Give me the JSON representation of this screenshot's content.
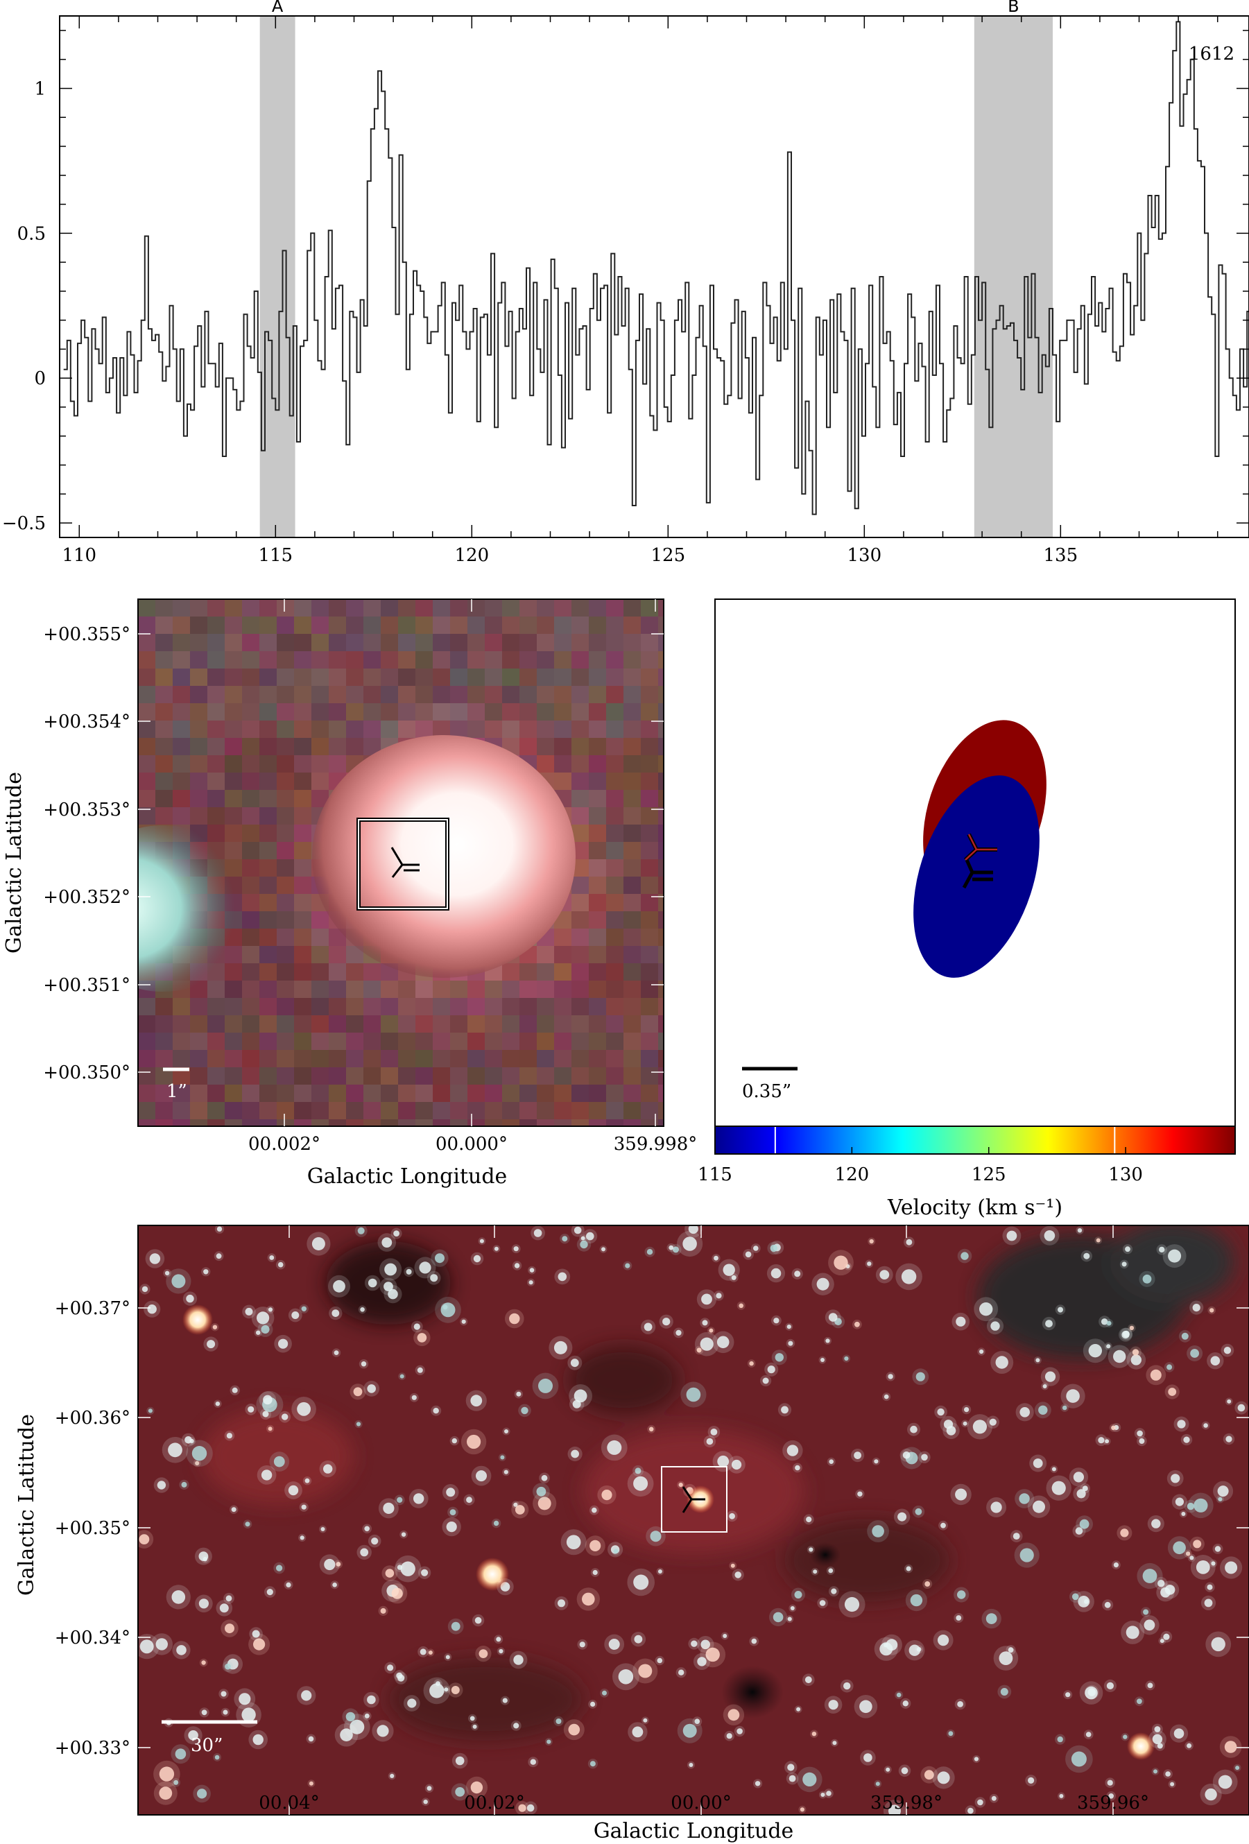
{
  "chart_data": [
    {
      "type": "line",
      "panel": "spectrum",
      "annotation": "1612",
      "xlim": [
        109.5,
        139.8
      ],
      "ylim": [
        -0.55,
        1.25
      ],
      "xticks": [
        110,
        115,
        120,
        125,
        130,
        135
      ],
      "yticks": [
        1,
        0.5,
        0,
        -0.5
      ],
      "ytick_labels": [
        "1",
        "0.5",
        "0",
        "−0.5"
      ],
      "shaded_regions": [
        {
          "label": "A",
          "x0": 114.6,
          "x1": 115.5
        },
        {
          "label": "B",
          "x0": 132.8,
          "x1": 134.8
        }
      ],
      "x_start": 109.6,
      "x_step": 0.09,
      "values": [
        0.03,
        0.13,
        -0.08,
        -0.13,
        0.12,
        0.2,
        0.14,
        -0.08,
        0.17,
        0.1,
        0.05,
        0.21,
        -0.05,
        0.0,
        0.07,
        -0.12,
        0.07,
        -0.06,
        0.16,
        0.08,
        -0.05,
        0.06,
        0.2,
        0.49,
        0.17,
        0.13,
        0.15,
        0.09,
        -0.01,
        0.04,
        0.25,
        0.1,
        -0.08,
        0.1,
        -0.2,
        -0.09,
        -0.11,
        0.11,
        0.18,
        -0.03,
        0.23,
        0.05,
        0.05,
        -0.03,
        0.12,
        -0.27,
        0.0,
        0.0,
        -0.04,
        -0.11,
        -0.08,
        0.22,
        0.11,
        0.07,
        0.3,
        0.02,
        -0.25,
        0.16,
        0.13,
        -0.07,
        -0.11,
        0.23,
        0.44,
        0.14,
        -0.13,
        0.18,
        -0.22,
        0.11,
        0.13,
        0.44,
        0.5,
        0.2,
        0.06,
        0.03,
        0.35,
        0.51,
        0.17,
        0.31,
        0.32,
        -0.01,
        -0.23,
        0.23,
        0.21,
        0.02,
        0.27,
        0.18,
        0.68,
        0.86,
        0.93,
        1.06,
        0.99,
        0.86,
        0.76,
        0.52,
        0.22,
        0.77,
        0.4,
        0.03,
        0.22,
        0.37,
        0.32,
        0.3,
        0.21,
        0.12,
        0.16,
        0.16,
        0.25,
        0.33,
        0.08,
        -0.12,
        0.26,
        0.2,
        0.32,
        0.16,
        0.1,
        0.16,
        0.24,
        -0.15,
        0.21,
        0.22,
        0.08,
        0.43,
        -0.17,
        0.26,
        0.33,
        0.11,
        0.23,
        -0.07,
        0.16,
        0.24,
        0.17,
        0.38,
        -0.06,
        0.33,
        0.1,
        0.02,
        0.27,
        -0.23,
        0.41,
        0.31,
        0.01,
        -0.24,
        0.26,
        -0.14,
        0.31,
        0.08,
        0.17,
        0.18,
        -0.04,
        0.24,
        0.36,
        0.2,
        0.31,
        0.32,
        -0.12,
        0.43,
        0.15,
        0.35,
        0.18,
        0.31,
        0.03,
        -0.44,
        0.13,
        0.29,
        -0.02,
        0.17,
        -0.13,
        -0.18,
        0.26,
        0.2,
        -0.1,
        -0.15,
        0.01,
        0.2,
        0.27,
        0.16,
        0.33,
        -0.14,
        0.01,
        0.14,
        0.25,
        0.11,
        -0.43,
        0.32,
        0.1,
        0.07,
        0.06,
        -0.09,
        -0.06,
        0.19,
        0.27,
        -0.07,
        0.23,
        0.07,
        -0.12,
        0.14,
        -0.35,
        -0.06,
        0.33,
        0.25,
        0.12,
        0.21,
        0.06,
        0.33,
        0.1,
        0.78,
        0.2,
        -0.31,
        0.31,
        -0.4,
        -0.08,
        -0.25,
        -0.47,
        0.21,
        0.08,
        0.2,
        -0.17,
        0.27,
        -0.05,
        0.29,
        0.16,
        0.13,
        -0.39,
        0.31,
        -0.45,
        0.1,
        -0.2,
        0.05,
        0.32,
        -0.03,
        -0.17,
        0.35,
        0.12,
        0.16,
        0.06,
        -0.16,
        -0.05,
        -0.27,
        0.05,
        0.29,
        0.21,
        -0.01,
        0.12,
        0.04,
        -0.22,
        0.23,
        0.01,
        0.32,
        0.05,
        -0.22,
        -0.11,
        -0.07,
        0.18,
        0.07,
        0.05,
        0.35,
        -0.09,
        0.08,
        0.35,
        0.2,
        0.33,
        0.03,
        -0.17,
        0.17,
        0.2,
        0.25,
        0.17,
        0.18,
        0.19,
        0.13,
        0.07,
        -0.04,
        0.35,
        0.14,
        0.36,
        0.14,
        -0.05,
        0.08,
        0.04,
        0.24,
        0.08,
        -0.15,
        0.13,
        0.13,
        0.2,
        0.2,
        0.02,
        0.17,
        0.25,
        -0.02,
        0.22,
        0.35,
        0.18,
        0.26,
        0.16,
        0.24,
        0.31,
        0.09,
        0.06,
        0.11,
        0.36,
        0.33,
        0.15,
        0.25,
        0.5,
        0.2,
        0.43,
        0.63,
        0.52,
        0.63,
        0.48,
        0.5,
        0.73,
        0.95,
        1.13,
        1.23,
        0.87,
        0.98,
        1.03,
        1.1,
        0.86,
        0.75,
        0.73,
        0.5,
        0.28,
        0.22,
        -0.27,
        0.39,
        0.36,
        0.1,
        0.0,
        -0.06,
        -0.11,
        0.1,
        -0.03,
        0.23,
        0.07,
        0.04,
        -0.13,
        -0.18,
        0.06,
        -0.03,
        0.3,
        -0.01,
        0.12,
        0.26,
        -0.06,
        0.13,
        -0.18,
        0.21,
        0.14,
        -0.01,
        -0.27,
        0.06,
        -0.28,
        -0.09,
        0.2,
        0.21,
        0.03,
        0.24,
        -0.15,
        0.26,
        -0.04,
        0.05,
        0.3,
        0.2,
        -0.15,
        0.04,
        0.2,
        -0.22,
        -0.11,
        0.34,
        0.2,
        -0.05,
        0.33,
        0.21,
        0.25,
        0.06,
        -0.14,
        0.0,
        -0.04,
        -0.21,
        0.18,
        0.3,
        0.17,
        0.15,
        -0.13,
        0.23,
        0.24,
        -0.08,
        0.1,
        -0.23,
        -0.06,
        0.03
      ]
    },
    {
      "type": "heatmap",
      "panel": "zoom-image",
      "ylabel": "Galactic Latitude",
      "xlabel": "Galactic Longitude",
      "xticks": [
        "00.002°",
        "00.000°",
        "359.998°"
      ],
      "yticks": [
        "+00.355°",
        "+00.354°",
        "+00.353°",
        "+00.352°",
        "+00.351°",
        "+00.350°"
      ],
      "scale_bar": "1”"
    },
    {
      "type": "scatter",
      "panel": "velocity-ellipses",
      "xlabel": "Velocity (km s⁻¹)",
      "colorbar_ticks": [
        "115",
        "120",
        "125",
        "130"
      ],
      "colorbar_range": [
        115,
        134
      ],
      "colorbar_markers": [
        117.2,
        129.6
      ],
      "scale_bar": "0.35”",
      "ellipses": [
        {
          "velocity": 134.0,
          "color": "#8b0000"
        },
        {
          "velocity": 115.0,
          "color": "#00008b"
        }
      ]
    },
    {
      "type": "heatmap",
      "panel": "wide-field-image",
      "ylabel": "Galactic Latitude",
      "xlabel": "Galactic Longitude",
      "xticks": [
        "00.04°",
        "00.02°",
        "00.00°",
        "359.98°",
        "359.96°"
      ],
      "yticks": [
        "+00.37°",
        "+00.36°",
        "+00.35°",
        "+00.34°",
        "+00.33°"
      ],
      "scale_bar": "30”"
    }
  ]
}
